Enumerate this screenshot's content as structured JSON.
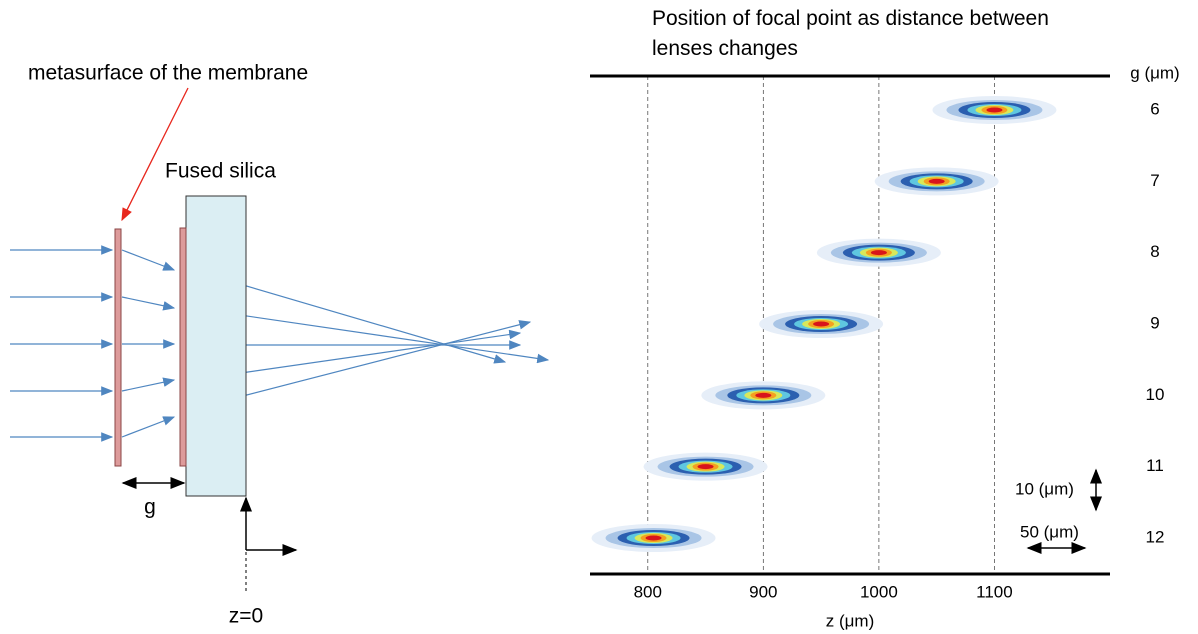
{
  "diagram": {
    "membrane_label": "metasurface of the membrane",
    "silica_label": "Fused silica",
    "gap_label": "g",
    "origin_label": "z=0"
  },
  "chart_data": {
    "type": "scatter",
    "title": "Position of focal point as distance between lenses changes",
    "xlabel": "z (μm)",
    "ylabel": "g (μm)",
    "categories": [
      "6",
      "7",
      "8",
      "9",
      "10",
      "11",
      "12"
    ],
    "values": [
      1100,
      1050,
      1000,
      950,
      900,
      850,
      805
    ],
    "xlim": [
      750,
      1200
    ],
    "xticks": [
      800,
      900,
      1000,
      1100
    ],
    "grid": true,
    "scale_annotations": [
      "10 (μm)",
      "50 (μm)"
    ]
  }
}
